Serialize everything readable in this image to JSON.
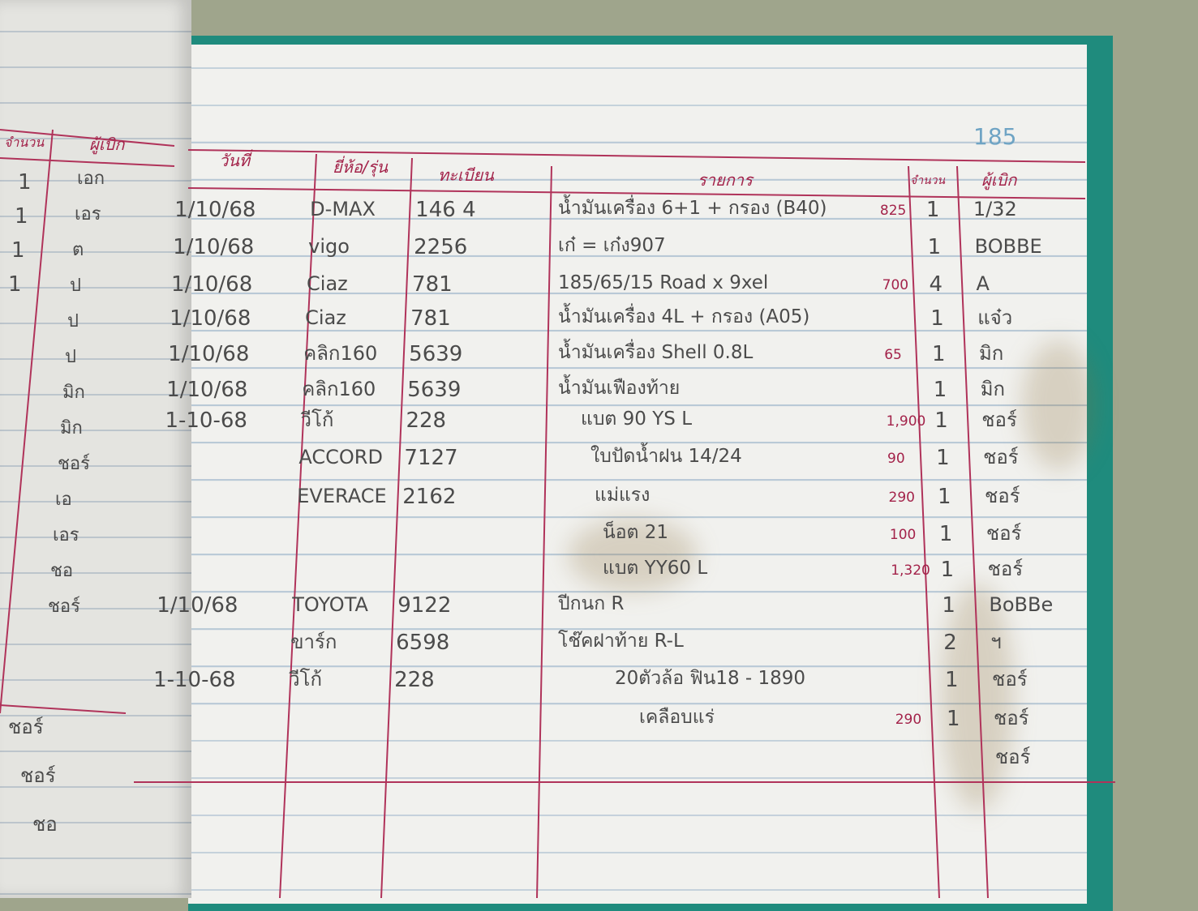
{
  "page_number": "185",
  "left_page": {
    "headers": {
      "qty": "จำนวน",
      "requester": "ผู้เบิก"
    },
    "qty": [
      "1",
      "1",
      "1",
      "1"
    ],
    "requesters": [
      "เอก",
      "เอร",
      "ต",
      "ป",
      "ป",
      "ป",
      "มิก",
      "มิก",
      "ชอร์",
      "เอ",
      "เอร",
      "ชอ",
      "ชอร์"
    ],
    "below_line": [
      "ชอร์",
      "ชอร์",
      "ชอ"
    ]
  },
  "headers": {
    "date": "วันที่",
    "model": "ยี่ห้อ/รุ่น",
    "reg": "ทะเบียน",
    "item": "รายการ",
    "qty": "จำนวน",
    "requester": "ผู้เบิก"
  },
  "rows": [
    {
      "date": "1/10/68",
      "model": "D-MAX",
      "reg": "146 4",
      "item": "น้ำมันเครื่อง 6+1 + กรอง (B40)",
      "price": "825",
      "qty": "1",
      "requester": "1/32"
    },
    {
      "date": "1/10/68",
      "model": "vigo",
      "reg": "2256",
      "item": "เก๋ = เก๋ง907",
      "price": "",
      "qty": "1",
      "requester": "BOBBE"
    },
    {
      "date": "1/10/68",
      "model": "Ciaz",
      "reg": "781",
      "item": "185/65/15 Road x 9xel",
      "price": "700",
      "qty": "4",
      "requester": "A"
    },
    {
      "date": "1/10/68",
      "model": "Ciaz",
      "reg": "781",
      "item": "น้ำมันเครื่อง 4L + กรอง (A05)",
      "price": "",
      "qty": "1",
      "requester": "แจ๋ว"
    },
    {
      "date": "1/10/68",
      "model": "คลิก160",
      "reg": "5639",
      "item": "น้ำมันเครื่อง Shell 0.8L",
      "price": "65",
      "qty": "1",
      "requester": "มิก"
    },
    {
      "date": "1/10/68",
      "model": "คลิก160",
      "reg": "5639",
      "item": "น้ำมันเฟืองท้าย",
      "price": "",
      "qty": "1",
      "requester": "มิก"
    },
    {
      "date": "1-10-68",
      "model": "วีโก้",
      "reg": "228",
      "item": "แบต 90 YS L",
      "price": "1,900",
      "qty": "1",
      "requester": "ชอร์"
    },
    {
      "date": "",
      "model": "ACCORD",
      "reg": "7127",
      "item": "ใบปัดน้ำฝน 14/24",
      "price": "90",
      "qty": "1",
      "requester": "ชอร์"
    },
    {
      "date": "",
      "model": "EVERACE",
      "reg": "2162",
      "item": "แม่แรง",
      "price": "290",
      "qty": "1",
      "requester": "ชอร์"
    },
    {
      "date": "",
      "model": "",
      "reg": "",
      "item": "น็อต 21",
      "price": "100",
      "qty": "1",
      "requester": "ชอร์"
    },
    {
      "date": "",
      "model": "",
      "reg": "",
      "item": "แบต YY60 L",
      "price": "1,320",
      "qty": "1",
      "requester": "ชอร์"
    },
    {
      "date": "1/10/68",
      "model": "TOYOTA",
      "reg": "9122",
      "item": "ปีกนก R",
      "price": "",
      "qty": "1",
      "requester": "BoBBe"
    },
    {
      "date": "",
      "model": "ขาร์ก",
      "reg": "6598",
      "item": "โช๊คฝาท้าย R-L",
      "price": "",
      "qty": "2",
      "requester": "ฯ"
    },
    {
      "date": "1-10-68",
      "model": "วีโก้",
      "reg": "228",
      "item": "20ตัวล้อ ฟิน18 - 1890",
      "price": "",
      "qty": "1",
      "requester": "ชอร์"
    },
    {
      "date": "",
      "model": "",
      "reg": "",
      "item": "เคลือบแร่",
      "price": "290",
      "qty": "1",
      "requester": "ชอร์"
    },
    {
      "date": "",
      "model": "",
      "reg": "",
      "item": "",
      "price": "",
      "qty": "",
      "requester": "ชอร์"
    }
  ],
  "colors": {
    "cover": "#1f8b7d",
    "ink": "#4b4b4b",
    "red_ink": "#a3234a",
    "rule_blue": "#b9c9d6"
  }
}
